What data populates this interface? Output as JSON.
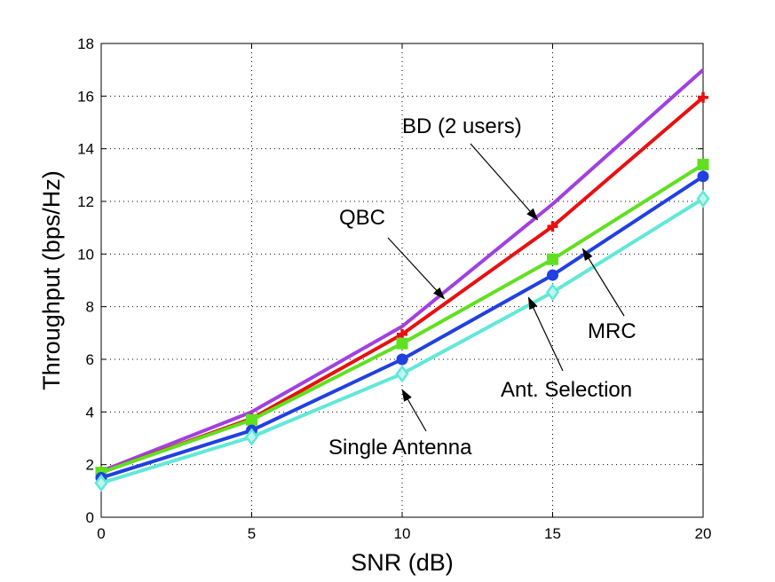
{
  "chart_data": {
    "type": "line",
    "title": "",
    "xlabel": "SNR (dB)",
    "ylabel": "Throughput (bps/Hz)",
    "xlim": [
      0,
      20
    ],
    "ylim": [
      0,
      18
    ],
    "xticks": [
      0,
      5,
      10,
      15,
      20
    ],
    "yticks": [
      0,
      2,
      4,
      6,
      8,
      10,
      12,
      14,
      16,
      18
    ],
    "grid": true,
    "legend": "none",
    "x": [
      0,
      5,
      10,
      15,
      20
    ],
    "series": [
      {
        "name": "BD (2 users)",
        "color": "#a040e0",
        "marker": "none",
        "values": [
          1.75,
          4.0,
          7.25,
          11.9,
          17.0
        ]
      },
      {
        "name": "QBC",
        "color": "#e81010",
        "marker": "plus",
        "values": [
          1.7,
          3.75,
          6.95,
          11.05,
          15.95
        ]
      },
      {
        "name": "MRC",
        "color": "#60e020",
        "marker": "square",
        "values": [
          1.7,
          3.7,
          6.6,
          9.8,
          13.4
        ]
      },
      {
        "name": "Ant. Selection",
        "color": "#2040e0",
        "marker": "circle",
        "values": [
          1.5,
          3.3,
          6.0,
          9.2,
          12.95
        ]
      },
      {
        "name": "Single Antenna",
        "color": "#60e8d8",
        "marker": "diamond",
        "values": [
          1.3,
          3.05,
          5.45,
          8.55,
          12.1
        ]
      }
    ],
    "annotations": [
      {
        "text": "BD (2 users)",
        "points_to": {
          "x": 14.5,
          "y": 11.3
        }
      },
      {
        "text": "QBC",
        "points_to": {
          "x": 11.4,
          "y": 8.3
        }
      },
      {
        "text": "MRC",
        "points_to": {
          "x": 16.0,
          "y": 10.2
        }
      },
      {
        "text": "Ant. Selection",
        "points_to": {
          "x": 14.2,
          "y": 8.35
        }
      },
      {
        "text": "Single Antenna",
        "points_to": {
          "x": 10.0,
          "y": 4.85
        }
      }
    ]
  }
}
